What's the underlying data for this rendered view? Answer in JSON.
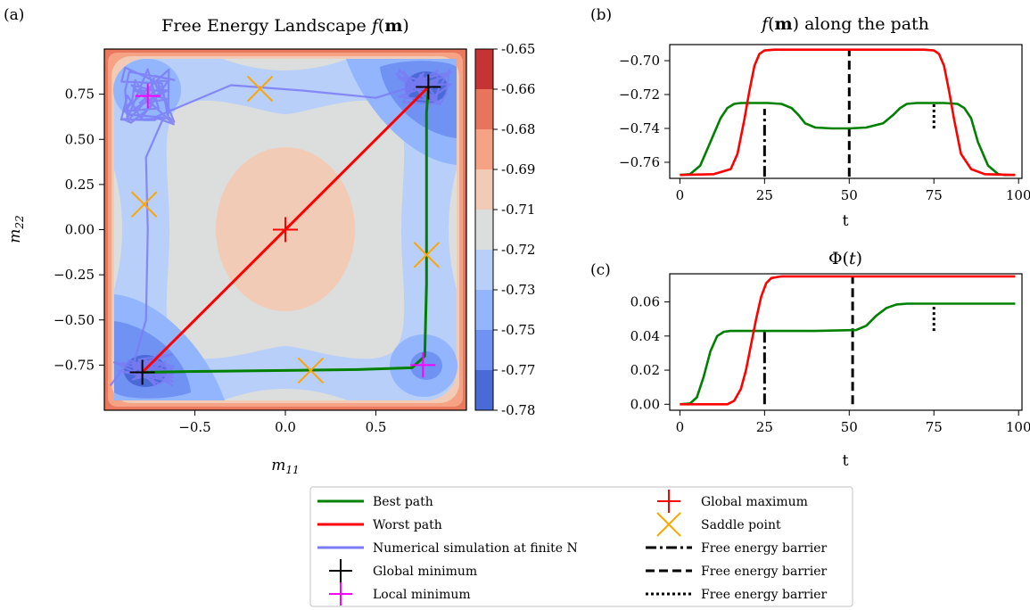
{
  "panel_labels": {
    "a": "(a)",
    "b": "(b)",
    "c": "(c)"
  },
  "colors": {
    "best_path": "#008000",
    "worst_path": "#ff0000",
    "simulation": "#5b5bf0",
    "global_minimum": "#000000",
    "local_minimum": "#ff00ff",
    "global_maximum": "#ff0000",
    "saddle_point": "#ffa500"
  },
  "chart_data": [
    {
      "id": "a",
      "type": "contour",
      "title": "Free Energy Landscape f(m)",
      "title_parts": [
        "Free Energy Landscape ",
        "f",
        "(",
        "m",
        ")"
      ],
      "xlabel_parts": [
        "m",
        "11"
      ],
      "ylabel_parts": [
        "m",
        "22"
      ],
      "xlim": [
        -1.0,
        1.0
      ],
      "ylim": [
        -1.0,
        1.0
      ],
      "x_ticks": [
        -0.5,
        0.0,
        0.5
      ],
      "x_tick_labels": [
        "−0.5",
        "0.0",
        "0.5"
      ],
      "y_ticks": [
        0.75,
        0.5,
        0.25,
        0.0,
        -0.25,
        -0.5,
        -0.75
      ],
      "y_tick_labels": [
        "0.75",
        "0.50",
        "0.25",
        "0.00",
        "−0.25",
        "−0.50",
        "−0.75"
      ],
      "colorbar": {
        "levels": [
          -0.78,
          -0.77,
          -0.75,
          -0.73,
          -0.72,
          -0.71,
          -0.69,
          -0.68,
          -0.66,
          -0.65
        ],
        "labels": [
          "-0.78",
          "-0.77",
          "-0.75",
          "-0.73",
          "-0.72",
          "-0.71",
          "-0.69",
          "-0.68",
          "-0.66",
          "-0.65"
        ],
        "colors": [
          "#4a6ad7",
          "#6f92f3",
          "#93b5fe",
          "#b7cff9",
          "#dcdddd",
          "#f2cbb7",
          "#f6a385",
          "#e7745b",
          "#c53334"
        ]
      },
      "series": [
        {
          "name": "Best path",
          "color": "#008000",
          "x": [
            -0.79,
            -0.5,
            0.0,
            0.4,
            0.7,
            0.77,
            0.78,
            0.78,
            0.78,
            0.79
          ],
          "y": [
            -0.79,
            -0.785,
            -0.78,
            -0.775,
            -0.765,
            -0.7,
            -0.3,
            0.2,
            0.65,
            0.79
          ]
        },
        {
          "name": "Worst path",
          "color": "#ff0000",
          "x": [
            -0.79,
            0.79
          ],
          "y": [
            -0.79,
            0.79
          ]
        }
      ],
      "points": {
        "global_minimum": [
          [
            -0.79,
            -0.79
          ],
          [
            0.79,
            0.79
          ]
        ],
        "local_minimum": [
          [
            -0.76,
            0.74
          ],
          [
            0.76,
            -0.75
          ]
        ],
        "global_maximum": [
          [
            0.0,
            0.0
          ]
        ],
        "saddle_point": [
          [
            -0.14,
            0.78
          ],
          [
            0.14,
            -0.78
          ],
          [
            -0.78,
            0.14
          ],
          [
            0.78,
            -0.14
          ]
        ]
      }
    },
    {
      "id": "b",
      "type": "line",
      "title": "f(m) along the path",
      "title_parts": [
        "f",
        "(",
        "m",
        ") along the path"
      ],
      "xlabel": "t",
      "xlim": [
        -3,
        101
      ],
      "ylim": [
        -0.7695,
        -0.6905
      ],
      "x_ticks": [
        0,
        25,
        50,
        75,
        100
      ],
      "x_tick_labels": [
        "0",
        "25",
        "50",
        "75",
        "100"
      ],
      "y_ticks": [
        -0.7,
        -0.72,
        -0.74,
        -0.76
      ],
      "y_tick_labels": [
        "−0.70",
        "−0.72",
        "−0.74",
        "−0.76"
      ],
      "series": [
        {
          "name": "Best path",
          "color": "#008000",
          "t": [
            0,
            3,
            6,
            9,
            12,
            14,
            16,
            18,
            22,
            26,
            30,
            33,
            35,
            37,
            40,
            45,
            50,
            55,
            60,
            63,
            65,
            67,
            70,
            74,
            78,
            82,
            84,
            86,
            88,
            91,
            94,
            96,
            99
          ],
          "values": [
            -0.7675,
            -0.767,
            -0.762,
            -0.748,
            -0.734,
            -0.728,
            -0.7255,
            -0.725,
            -0.725,
            -0.725,
            -0.7255,
            -0.728,
            -0.732,
            -0.737,
            -0.7395,
            -0.74,
            -0.74,
            -0.7395,
            -0.737,
            -0.732,
            -0.728,
            -0.7255,
            -0.725,
            -0.725,
            -0.725,
            -0.7255,
            -0.728,
            -0.734,
            -0.748,
            -0.762,
            -0.767,
            -0.7675,
            -0.7675
          ]
        },
        {
          "name": "Worst path",
          "color": "#ff0000",
          "t": [
            0,
            10,
            15,
            17,
            19,
            20.5,
            22,
            23.5,
            25,
            28,
            50,
            72,
            75,
            76.5,
            78,
            79.5,
            81,
            83,
            86,
            90,
            99
          ],
          "values": [
            -0.7675,
            -0.767,
            -0.764,
            -0.755,
            -0.735,
            -0.718,
            -0.703,
            -0.696,
            -0.694,
            -0.6935,
            -0.6935,
            -0.6935,
            -0.694,
            -0.696,
            -0.703,
            -0.718,
            -0.735,
            -0.755,
            -0.764,
            -0.767,
            -0.7675
          ]
        }
      ],
      "barriers": [
        {
          "style": "dashdot",
          "t": 25,
          "from": -0.7685,
          "to": -0.7285
        },
        {
          "style": "dashed",
          "t": 50,
          "from": -0.7685,
          "to": -0.6935
        },
        {
          "style": "dotted",
          "t": 75,
          "from": -0.74,
          "to": -0.7255
        }
      ]
    },
    {
      "id": "c",
      "type": "line",
      "title": "Φ(t)",
      "title_parts": [
        "Φ(",
        "t",
        ")"
      ],
      "xlabel": "t",
      "xlim": [
        -3,
        101
      ],
      "ylim": [
        -0.0035,
        0.0765
      ],
      "x_ticks": [
        0,
        25,
        50,
        75,
        100
      ],
      "x_tick_labels": [
        "0",
        "25",
        "50",
        "75",
        "100"
      ],
      "y_ticks": [
        0.06,
        0.04,
        0.02,
        0.0
      ],
      "y_tick_labels": [
        "0.06",
        "0.04",
        "0.02",
        "0.00"
      ],
      "series": [
        {
          "name": "Best path",
          "color": "#008000",
          "t": [
            0,
            3,
            5,
            7,
            9,
            11,
            13,
            15,
            18,
            25,
            40,
            52,
            55,
            58,
            61,
            64,
            67,
            70,
            99
          ],
          "values": [
            0.0,
            0.0005,
            0.004,
            0.016,
            0.031,
            0.04,
            0.0425,
            0.043,
            0.043,
            0.043,
            0.043,
            0.0435,
            0.046,
            0.052,
            0.0565,
            0.0585,
            0.059,
            0.059,
            0.059
          ]
        },
        {
          "name": "Worst path",
          "color": "#ff0000",
          "t": [
            0,
            14,
            16,
            18,
            19.5,
            21,
            22.5,
            24,
            25.5,
            27,
            30,
            99
          ],
          "values": [
            0.0,
            0.0,
            0.002,
            0.009,
            0.02,
            0.035,
            0.05,
            0.063,
            0.071,
            0.074,
            0.075,
            0.075
          ]
        }
      ],
      "barriers": [
        {
          "style": "dashdot",
          "t": 25,
          "from": 0.0,
          "to": 0.043
        },
        {
          "style": "dashed",
          "t": 51,
          "from": 0.0,
          "to": 0.075
        },
        {
          "style": "dotted",
          "t": 75,
          "from": 0.043,
          "to": 0.059
        }
      ]
    }
  ],
  "legend": {
    "position": "bottom-center",
    "left": [
      {
        "label": "Best path",
        "marker": "line",
        "color": "#008000"
      },
      {
        "label": "Worst path",
        "marker": "line",
        "color": "#ff0000"
      },
      {
        "label": "Numerical simulation at finite N",
        "marker": "line",
        "color": "#7b7bf5"
      },
      {
        "label": "Global minimum",
        "marker": "plus",
        "color": "#000000"
      },
      {
        "label": "Local minimum",
        "marker": "plus",
        "color": "#ff00ff"
      }
    ],
    "right": [
      {
        "label": "Global maximum",
        "marker": "plus",
        "color": "#ff0000"
      },
      {
        "label": "Saddle point",
        "marker": "cross",
        "color": "#ffa500"
      },
      {
        "label": "Free energy barrier",
        "marker": "dashdot",
        "color": "#000000"
      },
      {
        "label": "Free energy barrier",
        "marker": "dashed",
        "color": "#000000"
      },
      {
        "label": "Free energy barrier",
        "marker": "dotted",
        "color": "#000000"
      }
    ]
  }
}
